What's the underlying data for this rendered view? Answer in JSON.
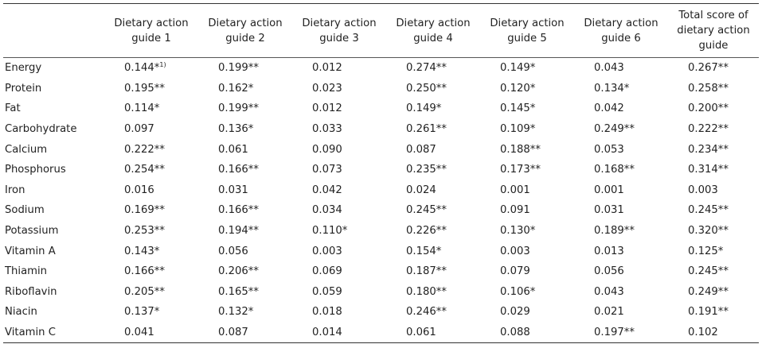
{
  "table": {
    "corner": "",
    "headers": [
      "Dietary action guide 1",
      "Dietary action guide 2",
      "Dietary action guide 3",
      "Dietary action guide 4",
      "Dietary action guide 5",
      "Dietary action guide 6",
      "Total score of dietary action guide"
    ],
    "rows": [
      {
        "label": "Energy",
        "values": [
          "0.144*",
          "0.199**",
          "0.012",
          "0.274**",
          "0.149*",
          "0.043",
          "0.267**"
        ],
        "footnote_mark": "1)"
      },
      {
        "label": "Protein",
        "values": [
          "0.195**",
          "0.162*",
          "0.023",
          "0.250**",
          "0.120*",
          "0.134*",
          "0.258**"
        ]
      },
      {
        "label": "Fat",
        "values": [
          "0.114*",
          "0.199**",
          "0.012",
          "0.149*",
          "0.145*",
          "0.042",
          "0.200**"
        ]
      },
      {
        "label": "Carbohydrate",
        "values": [
          "0.097",
          "0.136*",
          "0.033",
          "0.261**",
          "0.109*",
          "0.249**",
          "0.222**"
        ]
      },
      {
        "label": "Calcium",
        "values": [
          "0.222**",
          "0.061",
          "0.090",
          "0.087",
          "0.188**",
          "0.053",
          "0.234**"
        ]
      },
      {
        "label": "Phosphorus",
        "values": [
          "0.254**",
          "0.166**",
          "0.073",
          "0.235**",
          "0.173**",
          "0.168**",
          "0.314**"
        ]
      },
      {
        "label": "Iron",
        "values": [
          "0.016",
          "0.031",
          "0.042",
          "0.024",
          "0.001",
          "0.001",
          "0.003"
        ]
      },
      {
        "label": "Sodium",
        "values": [
          "0.169**",
          "0.166**",
          "0.034",
          "0.245**",
          "0.091",
          "0.031",
          "0.245**"
        ]
      },
      {
        "label": "Potassium",
        "values": [
          "0.253**",
          "0.194**",
          "0.110*",
          "0.226**",
          "0.130*",
          "0.189**",
          "0.320**"
        ]
      },
      {
        "label": "Vitamin A",
        "values": [
          "0.143*",
          "0.056",
          "0.003",
          "0.154*",
          "0.003",
          "0.013",
          "0.125*"
        ]
      },
      {
        "label": "Thiamin",
        "values": [
          "0.166**",
          "0.206**",
          "0.069",
          "0.187**",
          "0.079",
          "0.056",
          "0.245**"
        ]
      },
      {
        "label": "Riboflavin",
        "values": [
          "0.205**",
          "0.165**",
          "0.059",
          "0.180**",
          "0.106*",
          "0.043",
          "0.249**"
        ]
      },
      {
        "label": "Niacin",
        "values": [
          "0.137*",
          "0.132*",
          "0.018",
          "0.246**",
          "0.029",
          "0.021",
          "0.191**"
        ]
      },
      {
        "label": "Vitamin C",
        "values": [
          "0.041",
          "0.087",
          "0.014",
          "0.061",
          "0.088",
          "0.197**",
          "0.102"
        ]
      }
    ]
  }
}
